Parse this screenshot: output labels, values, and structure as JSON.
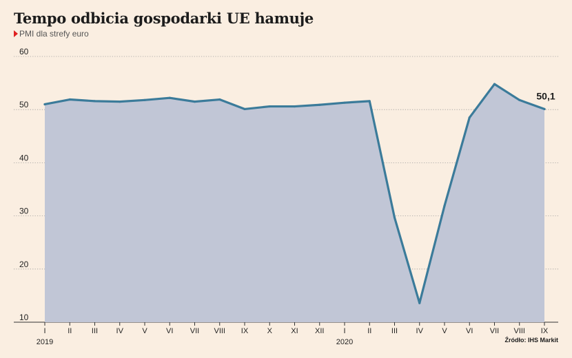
{
  "title": "Tempo odbicia gospodarki UE hamuje",
  "subtitle": "PMI dla strefy euro",
  "source": "Źródło: IHS Markit",
  "colors": {
    "background": "#faeee1",
    "line": "#3b7b9a",
    "area": "#c1c6d6",
    "marker": "#e02020",
    "grid": "#9a9a9a"
  },
  "chart_data": {
    "type": "area",
    "categories": [
      "I",
      "II",
      "III",
      "IV",
      "V",
      "VI",
      "VII",
      "VIII",
      "IX",
      "X",
      "XI",
      "XII",
      "I",
      "II",
      "III",
      "IV",
      "V",
      "VI",
      "VII",
      "VIII",
      "IX"
    ],
    "year_labels": [
      {
        "index": 0,
        "label": "2019"
      },
      {
        "index": 12,
        "label": "2020"
      }
    ],
    "series": [
      {
        "name": "",
        "values": [
          51.0,
          51.9,
          51.6,
          51.5,
          51.8,
          52.2,
          51.5,
          51.9,
          50.1,
          50.6,
          50.6,
          50.9,
          51.3,
          51.6,
          29.7,
          13.6,
          31.9,
          48.5,
          54.8,
          51.8,
          50.1
        ]
      }
    ],
    "ylim": [
      10,
      60
    ],
    "yticks": [
      10,
      20,
      30,
      40,
      50,
      60
    ],
    "ytick_labels": [
      "10",
      "20",
      "30",
      "40",
      "50",
      "60"
    ],
    "grid": true,
    "annotation": {
      "index": 20,
      "label": "50,1"
    },
    "xlabel": "",
    "ylabel": ""
  }
}
